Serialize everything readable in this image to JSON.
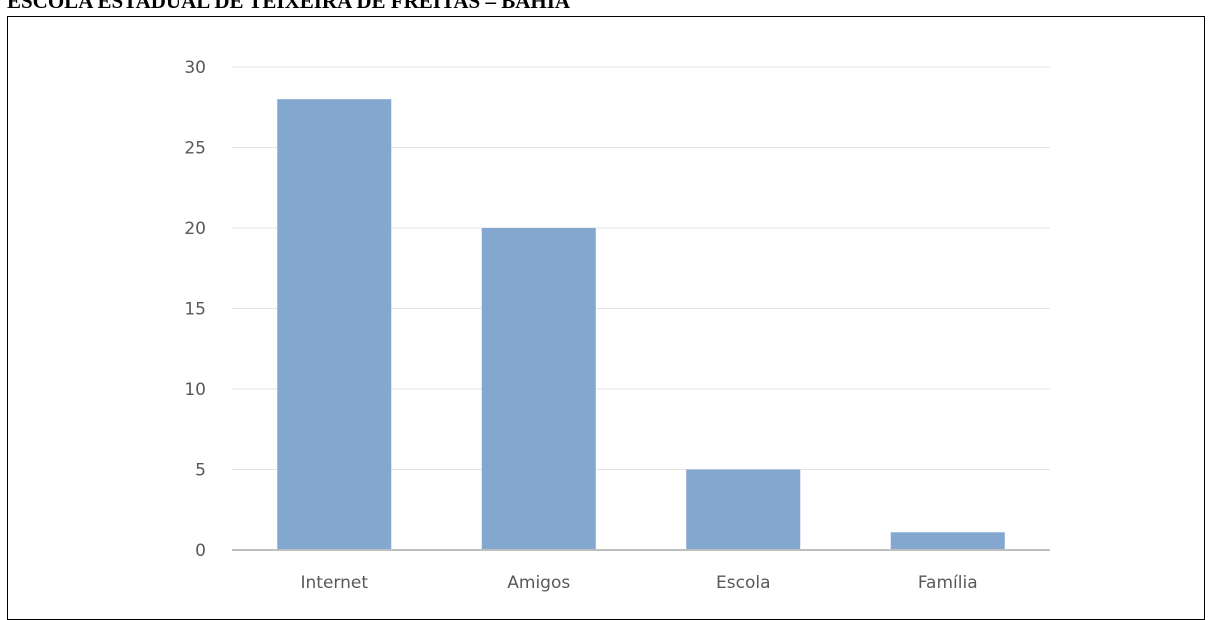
{
  "heading": "ESCOLA ESTADUAL DE TEIXEIRA DE FREITAS – BAHIA",
  "colors": {
    "bar": "#84a7cf",
    "grid": "#e3e3e3",
    "axis": "#bfbfbf",
    "tick_text": "#595959",
    "frame": "#000000"
  },
  "chart_data": {
    "type": "bar",
    "categories": [
      "Internet",
      "Amigos",
      "Escola",
      "Família"
    ],
    "values": [
      28,
      20,
      5,
      1.1
    ],
    "ylim": [
      0,
      30
    ],
    "yticks": [
      0,
      5,
      10,
      15,
      20,
      25,
      30
    ],
    "ytick_labels": [
      "0",
      "5",
      "10",
      "15",
      "20",
      "25",
      "30"
    ],
    "grid": true,
    "legend": "none"
  }
}
